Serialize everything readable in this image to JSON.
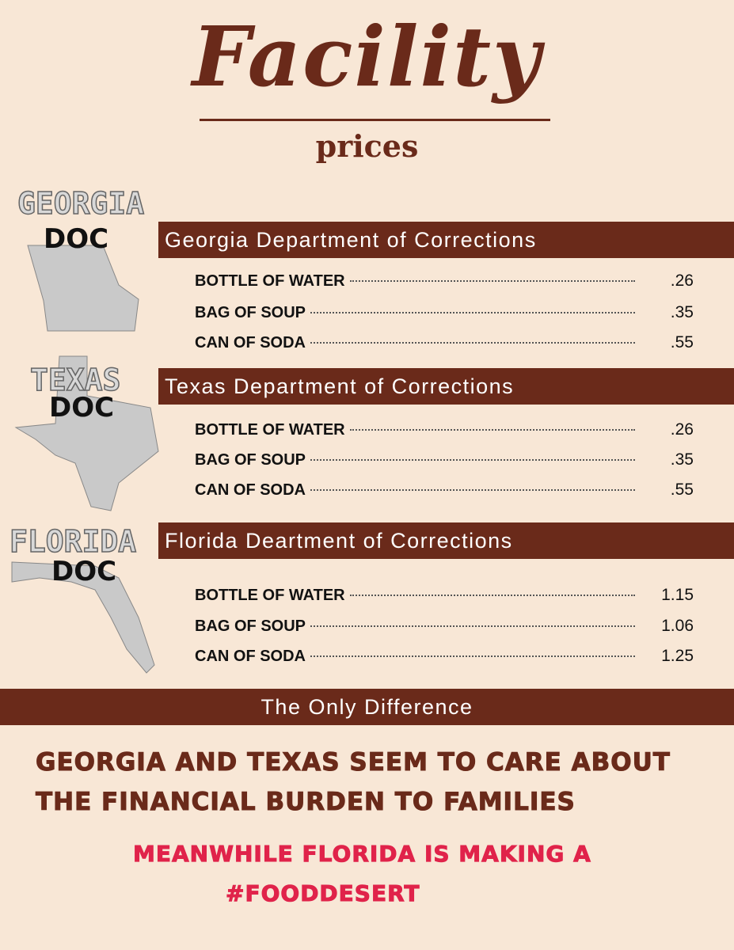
{
  "header": {
    "title": "Facility",
    "subtitle": "prices"
  },
  "sections": [
    {
      "state_label": "GEORGIA",
      "doc_label": "DOC",
      "heading": "Georgia Department of  Corrections",
      "items": [
        {
          "name": "BOTTLE OF WATER",
          "price": ".26"
        },
        {
          "name": "BAG OF SOUP",
          "price": ".35"
        },
        {
          "name": "CAN OF SODA",
          "price": ".55"
        }
      ]
    },
    {
      "state_label": "TEXAS",
      "doc_label": "DOC",
      "heading": "Texas Department of  Corrections",
      "items": [
        {
          "name": "BOTTLE OF WATER",
          "price": ".26"
        },
        {
          "name": "BAG OF SOUP",
          "price": ".35"
        },
        {
          "name": "CAN OF SODA",
          "price": ".55"
        }
      ]
    },
    {
      "state_label": "FLORIDA",
      "doc_label": "DOC",
      "heading": "Florida Deartment of  Corrections",
      "items": [
        {
          "name": "BOTTLE OF WATER",
          "price": "1.15"
        },
        {
          "name": "BAG OF SOUP",
          "price": "1.06"
        },
        {
          "name": "CAN OF SODA",
          "price": "1.25"
        }
      ]
    }
  ],
  "footer": {
    "banner": "The Only Difference",
    "message_lines": [
      "GEORGIA AND TEXAS SEEM TO CARE ABOUT",
      "THE FINANCIAL BURDEN TO FAMILIES"
    ],
    "highlight_lines": [
      "MEANWHILE FLORIDA IS MAKING A",
      "#FOODDESERT"
    ]
  }
}
